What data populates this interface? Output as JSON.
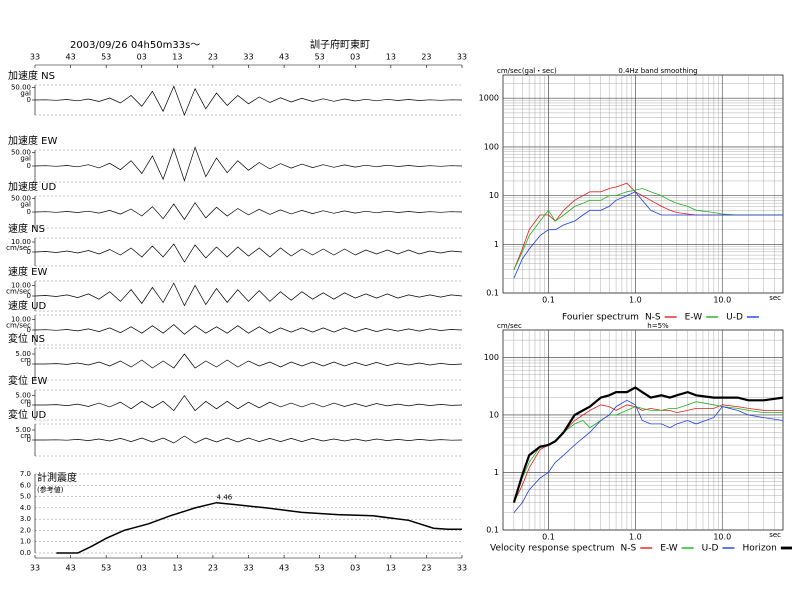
{
  "header": {
    "datetime": "2003/09/26 04h50m33s～",
    "station": "訓子府町東町"
  },
  "chart_data": [
    {
      "type": "line",
      "title": "加速度 NS",
      "unit": "gal",
      "ylim": [
        -60,
        60
      ],
      "yticks": [
        {
          "value": 50,
          "label": "50.00"
        },
        0
      ],
      "color": "#000000",
      "values": [
        0,
        1,
        -1,
        2,
        -3,
        4,
        -6,
        8,
        -12,
        18,
        -25,
        35,
        -45,
        55,
        -60,
        45,
        -35,
        28,
        -22,
        18,
        -15,
        12,
        -10,
        9,
        -8,
        7,
        -6,
        5,
        -5,
        4,
        -4,
        3,
        -3,
        3,
        -2,
        2,
        -2,
        1,
        -1,
        1,
        0
      ]
    },
    {
      "type": "line",
      "title": "加速度 EW",
      "unit": "gal",
      "ylim": [
        -60,
        60
      ],
      "yticks": [
        {
          "value": 50,
          "label": "50.00"
        },
        0
      ],
      "color": "#000000",
      "values": [
        0,
        1,
        -1,
        2,
        -3,
        5,
        -7,
        10,
        -14,
        20,
        -28,
        38,
        -50,
        65,
        -55,
        70,
        -40,
        30,
        -25,
        20,
        -16,
        13,
        -11,
        9,
        -8,
        7,
        -6,
        5,
        -5,
        4,
        -4,
        3,
        -3,
        3,
        -2,
        2,
        -2,
        1,
        -1,
        1,
        0
      ]
    },
    {
      "type": "line",
      "title": "加速度 UD",
      "unit": "gal",
      "ylim": [
        -60,
        60
      ],
      "yticks": [
        {
          "value": 50,
          "label": "50.00"
        },
        0
      ],
      "color": "#000000",
      "values": [
        0,
        1,
        -1,
        2,
        -2,
        3,
        -4,
        6,
        -8,
        11,
        -15,
        20,
        -25,
        30,
        -28,
        35,
        -22,
        18,
        -15,
        13,
        -11,
        10,
        -9,
        8,
        -7,
        6,
        -6,
        5,
        -5,
        4,
        -4,
        3,
        -3,
        3,
        -2,
        2,
        -2,
        1,
        -1,
        1,
        0
      ]
    },
    {
      "type": "line",
      "title": "速度 NS",
      "unit": "cm/sec",
      "ylim": [
        -14,
        14
      ],
      "yticks": [
        {
          "value": 10,
          "label": "10.00"
        },
        0
      ],
      "color": "#000000",
      "values": [
        0,
        0.5,
        -0.5,
        1,
        -1,
        1.5,
        -2,
        2.5,
        -3,
        4,
        -5,
        6,
        -5,
        8,
        -10,
        7,
        -6,
        5,
        -5,
        5,
        -4,
        4,
        -5,
        4,
        -4,
        3,
        -3,
        3,
        -3,
        3,
        -3,
        2,
        -2,
        2,
        -2,
        2,
        -2,
        1,
        -1,
        1,
        0
      ]
    },
    {
      "type": "line",
      "title": "速度 EW",
      "unit": "cm/sec",
      "ylim": [
        -14,
        14
      ],
      "yticks": [
        {
          "value": 10,
          "label": "10.00"
        },
        0
      ],
      "color": "#000000",
      "values": [
        0,
        0.5,
        -0.5,
        1,
        -1.5,
        2,
        -3,
        4,
        -5,
        6,
        -7,
        8,
        -6,
        12,
        -9,
        10,
        -8,
        7,
        -6,
        6,
        -5,
        5,
        -5,
        4,
        -4,
        4,
        -3,
        3,
        -3,
        3,
        -2,
        2,
        -2,
        2,
        -2,
        1,
        -1,
        1,
        -1,
        1,
        0
      ]
    },
    {
      "type": "line",
      "title": "速度 UD",
      "unit": "cm/sec",
      "ylim": [
        -14,
        14
      ],
      "yticks": [
        {
          "value": 10,
          "label": "10.00"
        },
        0
      ],
      "color": "#000000",
      "values": [
        0,
        0.3,
        -0.3,
        0.5,
        -0.8,
        1,
        -1.5,
        2,
        -2.5,
        3,
        -3,
        4,
        -3,
        5,
        -4,
        4,
        -3,
        3,
        -3,
        4,
        -3,
        3,
        -3,
        2,
        -2,
        2,
        -2,
        2,
        -2,
        2,
        -1.5,
        1.5,
        -1.5,
        1,
        -1,
        1,
        -1,
        1,
        -0.5,
        0.5,
        0
      ]
    },
    {
      "type": "line",
      "title": "変位 NS",
      "unit": "cm",
      "ylim": [
        -8,
        8
      ],
      "yticks": [
        {
          "value": 5,
          "label": "5.00"
        },
        0
      ],
      "color": "#000000",
      "values": [
        0,
        0,
        0.2,
        -0.2,
        0.5,
        -0.5,
        1,
        -1,
        1.5,
        -1.5,
        2,
        -2,
        1.5,
        -2,
        5,
        -2,
        1.5,
        -1.5,
        2,
        -1.5,
        1.5,
        -1,
        1,
        -1.5,
        1,
        -1,
        1,
        -1,
        1,
        -1,
        0.8,
        -0.8,
        0.8,
        -0.8,
        0.5,
        -0.5,
        0.5,
        -0.5,
        0.3,
        -0.3,
        0
      ]
    },
    {
      "type": "line",
      "title": "変位 EW",
      "unit": "cm",
      "ylim": [
        -8,
        8
      ],
      "yticks": [
        {
          "value": 5,
          "label": "5.00"
        },
        0
      ],
      "color": "#000000",
      "values": [
        0,
        0,
        0.2,
        -0.3,
        0.5,
        -0.8,
        1,
        -1,
        1.5,
        -2,
        2,
        -1.5,
        2,
        -3,
        5,
        -3,
        2,
        -2,
        2,
        -2,
        1.5,
        -1.5,
        1.5,
        -1,
        1,
        -1,
        1,
        -1,
        1,
        -0.8,
        0.8,
        -0.8,
        0.8,
        -0.5,
        0.5,
        -0.5,
        0.5,
        -0.3,
        0.3,
        -0.2,
        0
      ]
    },
    {
      "type": "line",
      "title": "変位 UD",
      "unit": "cm",
      "ylim": [
        -8,
        8
      ],
      "yticks": [
        {
          "value": 5,
          "label": "5.00"
        },
        0
      ],
      "color": "#000000",
      "values": [
        0,
        0,
        0.1,
        -0.1,
        0.3,
        -0.3,
        0.5,
        -0.5,
        0.8,
        -0.8,
        1,
        -1,
        1,
        -1.5,
        2,
        -1.5,
        1,
        -1,
        1,
        -1,
        1,
        -0.8,
        0.8,
        -0.8,
        0.8,
        -0.8,
        0.8,
        -0.5,
        0.5,
        -0.5,
        0.5,
        -0.5,
        0.5,
        -0.3,
        0.3,
        -0.3,
        0.3,
        -0.2,
        0.2,
        -0.1,
        0
      ]
    },
    {
      "type": "line",
      "title": "計測震度",
      "subtitle": "(参考値)",
      "color": "#000000",
      "xlim": [
        0,
        120
      ],
      "xticks": [
        {
          "value": 0,
          "label": "33"
        },
        {
          "value": 10,
          "label": "43"
        },
        {
          "value": 20,
          "label": "53"
        },
        {
          "value": 30,
          "label": "03"
        },
        {
          "value": 40,
          "label": "13"
        },
        {
          "value": 50,
          "label": "23"
        },
        {
          "value": 60,
          "label": "33"
        },
        {
          "value": 70,
          "label": "43"
        },
        {
          "value": 80,
          "label": "53"
        },
        {
          "value": 90,
          "label": "03"
        },
        {
          "value": 100,
          "label": "13"
        },
        {
          "value": 110,
          "label": "23"
        },
        {
          "value": 120,
          "label": "33"
        }
      ],
      "ylim": [
        0,
        7
      ],
      "yticks": [
        {
          "value": 0,
          "label": "0.0"
        },
        {
          "value": 1,
          "label": "1.0"
        },
        {
          "value": 2,
          "label": "2.0"
        },
        {
          "value": 3,
          "label": "3.0"
        },
        {
          "value": 4,
          "label": "4.0"
        },
        {
          "value": 5,
          "label": "5.0"
        },
        {
          "value": 6,
          "label": "6.0"
        },
        {
          "value": 7,
          "label": "7.0"
        }
      ],
      "x": [
        6,
        12,
        16,
        20,
        25,
        32,
        38,
        45,
        51,
        56,
        65,
        75,
        85,
        95,
        105,
        112,
        116,
        120
      ],
      "values": [
        0,
        0,
        0.6,
        1.3,
        2.0,
        2.6,
        3.3,
        4.0,
        4.46,
        4.3,
        4.0,
        3.6,
        3.4,
        3.3,
        2.9,
        2.2,
        2.1,
        2.1
      ],
      "annotations": [
        {
          "x": 51,
          "y": 4.46,
          "text": "4.46"
        }
      ]
    },
    {
      "type": "line",
      "log_x": true,
      "log_y": true,
      "minor_grid": true,
      "ylabel": "cm/sec(gal・sec)",
      "subtitle": "0.4Hz band smoothing",
      "legend_title": "Fourier spectrum",
      "xlabel": "sec",
      "xlim": [
        0.03,
        50
      ],
      "xticks": [
        0.1,
        {
          "value": 1,
          "label": "1.0"
        },
        {
          "value": 10,
          "label": "10.0"
        }
      ],
      "ylim": [
        0.1,
        3000
      ],
      "yticks": [
        0.1,
        1,
        10,
        100,
        1000
      ],
      "x": [
        0.04,
        0.05,
        0.06,
        0.08,
        0.1,
        0.12,
        0.15,
        0.2,
        0.25,
        0.3,
        0.4,
        0.5,
        0.6,
        0.8,
        1.0,
        1.2,
        1.5,
        2,
        2.5,
        3,
        4,
        5,
        8,
        10,
        15,
        20,
        30,
        50
      ],
      "series": [
        {
          "name": "N-S",
          "color": "#e02020",
          "values": [
            0.3,
            0.8,
            2,
            4,
            4,
            3,
            5,
            8,
            10,
            12,
            12,
            14,
            15,
            18,
            12,
            10,
            8,
            6,
            5,
            4.5,
            4.2,
            4,
            4,
            4,
            4,
            4,
            4,
            4
          ]
        },
        {
          "name": "E-W",
          "color": "#20b020",
          "values": [
            0.3,
            0.7,
            1.5,
            3,
            5,
            3,
            4,
            6,
            7,
            8,
            8,
            10,
            10,
            12,
            13,
            14,
            12,
            10,
            8,
            7,
            6,
            5,
            4.5,
            4.2,
            4,
            4,
            4,
            4
          ]
        },
        {
          "name": "U-D",
          "color": "#2040e0",
          "values": [
            0.2,
            0.5,
            0.8,
            1.5,
            2,
            2,
            2.5,
            3,
            4,
            5,
            5,
            6,
            8,
            10,
            12,
            8,
            5,
            4,
            4,
            4,
            4,
            4,
            4,
            4,
            4,
            4,
            4,
            4
          ]
        }
      ]
    },
    {
      "type": "line",
      "log_x": true,
      "log_y": true,
      "minor_grid": true,
      "ylabel": "cm/sec",
      "subtitle": "h=5%",
      "legend_title": "Velocity response spectrum",
      "xlabel": "sec",
      "xlim": [
        0.03,
        50
      ],
      "xticks": [
        0.1,
        {
          "value": 1,
          "label": "1.0"
        },
        {
          "value": 10,
          "label": "10.0"
        }
      ],
      "ylim": [
        0.1,
        300
      ],
      "yticks": [
        0.1,
        1,
        10,
        100
      ],
      "x": [
        0.04,
        0.05,
        0.06,
        0.08,
        0.1,
        0.12,
        0.15,
        0.2,
        0.25,
        0.3,
        0.4,
        0.5,
        0.6,
        0.8,
        1.0,
        1.2,
        1.5,
        2,
        2.5,
        3,
        4,
        5,
        8,
        10,
        15,
        20,
        30,
        50
      ],
      "series": [
        {
          "name": "N-S",
          "color": "#e02020",
          "values": [
            0.3,
            0.6,
            1.2,
            2.5,
            3,
            3.5,
            5,
            8,
            10,
            12,
            15,
            14,
            12,
            15,
            14,
            12,
            13,
            12,
            12,
            11,
            12,
            13,
            13,
            15,
            14,
            13,
            12,
            12
          ]
        },
        {
          "name": "E-W",
          "color": "#20b020",
          "values": [
            0.3,
            0.8,
            1.5,
            2.8,
            3,
            3.5,
            5,
            7,
            8,
            6,
            8,
            10,
            10,
            12,
            14,
            13,
            12,
            12,
            13,
            13,
            15,
            17,
            15,
            14,
            13,
            12,
            11,
            11
          ]
        },
        {
          "name": "U-D",
          "color": "#2040e0",
          "values": [
            0.2,
            0.3,
            0.5,
            0.8,
            1,
            1.5,
            2,
            3,
            4,
            5,
            8,
            10,
            14,
            18,
            15,
            8,
            7,
            7,
            6,
            7,
            8,
            7,
            9,
            14,
            12,
            10,
            9,
            8
          ]
        },
        {
          "name": "Horizon",
          "color": "#000000",
          "width": 2.2,
          "values": [
            0.3,
            0.9,
            2,
            2.8,
            3,
            3.5,
            5,
            10,
            12,
            14,
            20,
            22,
            25,
            25,
            30,
            25,
            20,
            22,
            20,
            22,
            25,
            22,
            20,
            20,
            20,
            18,
            18,
            20
          ]
        }
      ]
    }
  ]
}
